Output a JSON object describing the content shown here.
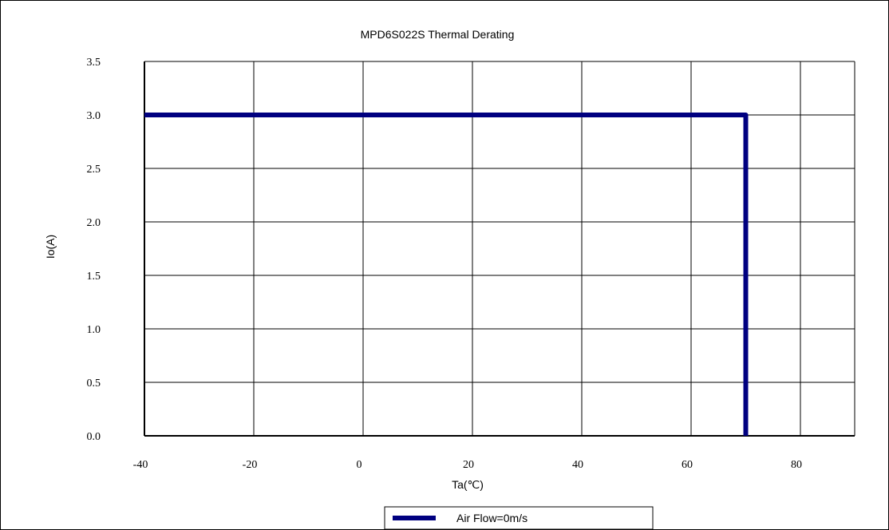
{
  "colors": {
    "series": "#000080",
    "grid": "#000000",
    "background": "#ffffff"
  },
  "chart_data": {
    "type": "line",
    "title": "MPD6S022S Thermal Derating",
    "xlabel": "Ta(℃)",
    "ylabel": "Io(A)",
    "xlim": [
      -40,
      90
    ],
    "ylim": [
      0,
      3.5
    ],
    "x_ticks": [
      -40,
      -20,
      0,
      20,
      40,
      60,
      80
    ],
    "x_tick_labels": [
      "-40",
      "-20",
      "0",
      "20",
      "40",
      "60",
      "80"
    ],
    "y_ticks": [
      0,
      0.5,
      1.0,
      1.5,
      2.0,
      2.5,
      3.0,
      3.5
    ],
    "y_tick_labels": [
      "0.0",
      "0.5",
      "1.0",
      "1.5",
      "2.0",
      "2.5",
      "3.0",
      "3.5"
    ],
    "grid": true,
    "legend_position": "bottom-center",
    "series": [
      {
        "name": "Air Flow=0m/s",
        "x": [
          -40,
          70,
          70
        ],
        "y": [
          3.0,
          3.0,
          0.0
        ]
      }
    ]
  }
}
